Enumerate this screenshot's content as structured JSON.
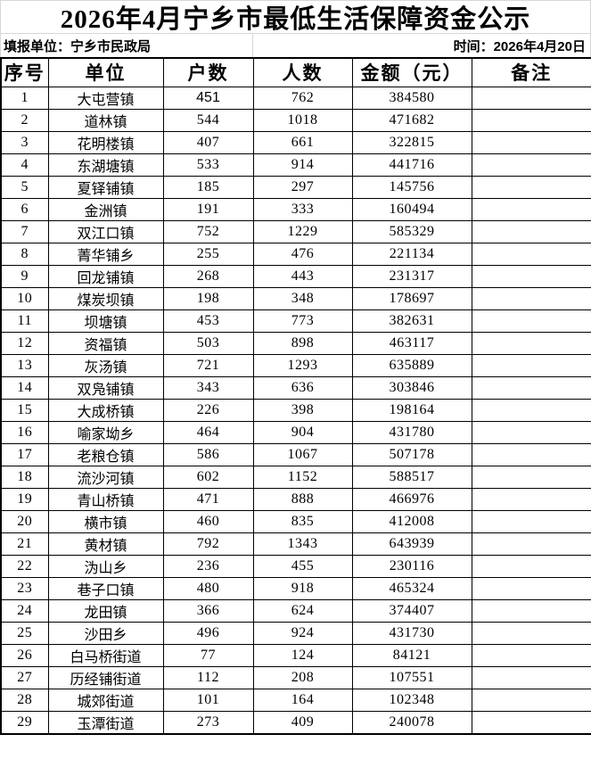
{
  "title": "2026年4月宁乡市最低生活保障资金公示",
  "subheader": {
    "left": "填报单位：宁乡市民政局",
    "right": "时间：2026年4月20日"
  },
  "table": {
    "columns": [
      "序号",
      "单位",
      "户数",
      "人数",
      "金额（元）",
      "备注"
    ],
    "rows": [
      {
        "no": "1",
        "unit": "大屯营镇",
        "households": "451",
        "people": "762",
        "amount": "384580",
        "remark": "",
        "households_bold": true
      },
      {
        "no": "2",
        "unit": "道林镇",
        "households": "544",
        "people": "1018",
        "amount": "471682",
        "remark": ""
      },
      {
        "no": "3",
        "unit": "花明楼镇",
        "households": "407",
        "people": "661",
        "amount": "322815",
        "remark": ""
      },
      {
        "no": "4",
        "unit": "东湖塘镇",
        "households": "533",
        "people": "914",
        "amount": "441716",
        "remark": ""
      },
      {
        "no": "5",
        "unit": "夏铎铺镇",
        "households": "185",
        "people": "297",
        "amount": "145756",
        "remark": ""
      },
      {
        "no": "6",
        "unit": "金洲镇",
        "households": "191",
        "people": "333",
        "amount": "160494",
        "remark": ""
      },
      {
        "no": "7",
        "unit": "双江口镇",
        "households": "752",
        "people": "1229",
        "amount": "585329",
        "remark": ""
      },
      {
        "no": "8",
        "unit": "菁华铺乡",
        "households": "255",
        "people": "476",
        "amount": "221134",
        "remark": ""
      },
      {
        "no": "9",
        "unit": "回龙铺镇",
        "households": "268",
        "people": "443",
        "amount": "231317",
        "remark": ""
      },
      {
        "no": "10",
        "unit": "煤炭坝镇",
        "households": "198",
        "people": "348",
        "amount": "178697",
        "remark": ""
      },
      {
        "no": "11",
        "unit": "坝塘镇",
        "households": "453",
        "people": "773",
        "amount": "382631",
        "remark": ""
      },
      {
        "no": "12",
        "unit": "资福镇",
        "households": "503",
        "people": "898",
        "amount": "463117",
        "remark": ""
      },
      {
        "no": "13",
        "unit": "灰汤镇",
        "households": "721",
        "people": "1293",
        "amount": "635889",
        "remark": ""
      },
      {
        "no": "14",
        "unit": "双凫铺镇",
        "households": "343",
        "people": "636",
        "amount": "303846",
        "remark": ""
      },
      {
        "no": "15",
        "unit": "大成桥镇",
        "households": "226",
        "people": "398",
        "amount": "198164",
        "remark": ""
      },
      {
        "no": "16",
        "unit": "喻家坳乡",
        "households": "464",
        "people": "904",
        "amount": "431780",
        "remark": ""
      },
      {
        "no": "17",
        "unit": "老粮仓镇",
        "households": "586",
        "people": "1067",
        "amount": "507178",
        "remark": ""
      },
      {
        "no": "18",
        "unit": "流沙河镇",
        "households": "602",
        "people": "1152",
        "amount": "588517",
        "remark": ""
      },
      {
        "no": "19",
        "unit": "青山桥镇",
        "households": "471",
        "people": "888",
        "amount": "466976",
        "remark": ""
      },
      {
        "no": "20",
        "unit": "横市镇",
        "households": "460",
        "people": "835",
        "amount": "412008",
        "remark": ""
      },
      {
        "no": "21",
        "unit": "黄材镇",
        "households": "792",
        "people": "1343",
        "amount": "643939",
        "remark": ""
      },
      {
        "no": "22",
        "unit": "沩山乡",
        "households": "236",
        "people": "455",
        "amount": "230116",
        "remark": ""
      },
      {
        "no": "23",
        "unit": "巷子口镇",
        "households": "480",
        "people": "918",
        "amount": "465324",
        "remark": ""
      },
      {
        "no": "24",
        "unit": "龙田镇",
        "households": "366",
        "people": "624",
        "amount": "374407",
        "remark": ""
      },
      {
        "no": "25",
        "unit": "沙田乡",
        "households": "496",
        "people": "924",
        "amount": "431730",
        "remark": ""
      },
      {
        "no": "26",
        "unit": "白马桥街道",
        "households": "77",
        "people": "124",
        "amount": "84121",
        "remark": ""
      },
      {
        "no": "27",
        "unit": "历经铺街道",
        "households": "112",
        "people": "208",
        "amount": "107551",
        "remark": ""
      },
      {
        "no": "28",
        "unit": "城郊街道",
        "households": "101",
        "people": "164",
        "amount": "102348",
        "remark": ""
      },
      {
        "no": "29",
        "unit": "玉潭街道",
        "households": "273",
        "people": "409",
        "amount": "240078",
        "remark": ""
      }
    ]
  },
  "colors": {
    "table_border": "#000000",
    "gridline": "#d7d7d7",
    "text": "#000000",
    "background": "#ffffff"
  }
}
